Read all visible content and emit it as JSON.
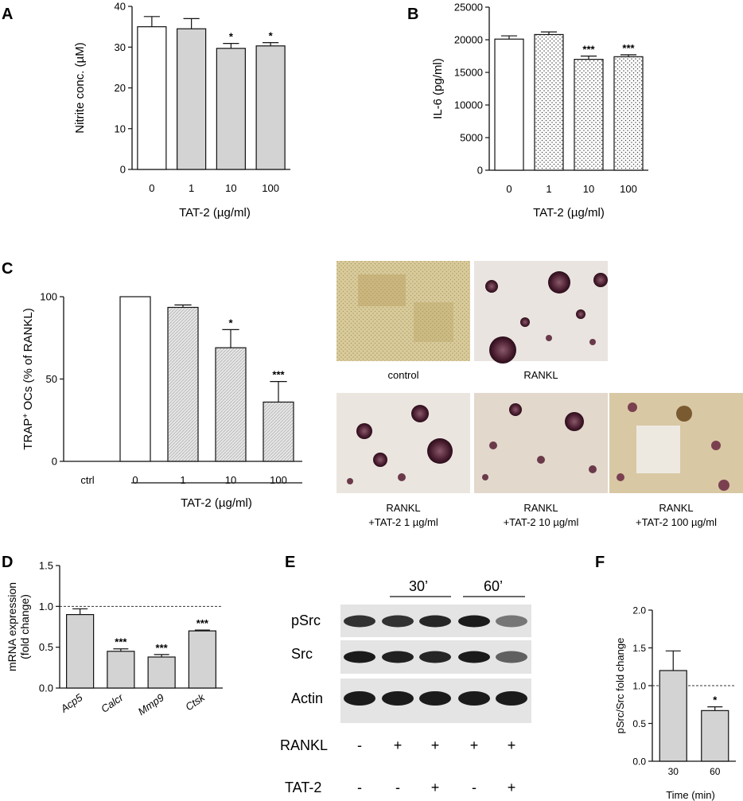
{
  "panels": {
    "A": "A",
    "B": "B",
    "C": "C",
    "D": "D",
    "E": "E",
    "F": "F"
  },
  "chart_data": [
    {
      "id": "A",
      "type": "bar",
      "categories": [
        "0",
        "1",
        "10",
        "100"
      ],
      "values": [
        35,
        34.5,
        29.7,
        30.3
      ],
      "errors": [
        2.5,
        2.5,
        1.2,
        0.8
      ],
      "sig": [
        "",
        "",
        "*",
        "*"
      ],
      "fills": [
        "white",
        "#d3d3d3",
        "#d3d3d3",
        "#d3d3d3"
      ],
      "xlabel": "TAT-2 (µg/ml)",
      "ylabel": "Nitrite conc. (µM)",
      "ylim": [
        0,
        40
      ],
      "yticks": [
        "0",
        "10",
        "20",
        "30",
        "40"
      ]
    },
    {
      "id": "B",
      "type": "bar",
      "categories": [
        "0",
        "1",
        "10",
        "100"
      ],
      "values": [
        20100,
        20800,
        17000,
        17400
      ],
      "errors": [
        500,
        400,
        500,
        300
      ],
      "sig": [
        "",
        "",
        "***",
        "***"
      ],
      "fills": [
        "white",
        "dots",
        "dots",
        "dots"
      ],
      "xlabel": "TAT-2 (µg/ml)",
      "ylabel": "IL-6 (pg/ml)",
      "ylim": [
        0,
        25000
      ],
      "yticks": [
        "0",
        "5000",
        "10000",
        "15000",
        "20000",
        "25000"
      ]
    },
    {
      "id": "C",
      "type": "bar",
      "categories": [
        "ctrl",
        "0",
        "1",
        "10",
        "100"
      ],
      "values": [
        0,
        100,
        93.5,
        69,
        36
      ],
      "errors": [
        0,
        0,
        1.5,
        11,
        12.5
      ],
      "sig": [
        "",
        "",
        "",
        "*",
        "***"
      ],
      "fills": [
        "white",
        "white",
        "hatch",
        "hatch",
        "hatch"
      ],
      "xlabel": "TAT-2 (µg/ml)",
      "ylabel_main": "TRAP",
      "ylabel_sup": "+",
      "ylabel_rest": " OCs (% of RANKL)",
      "ylim": [
        0,
        100
      ],
      "yticks": [
        "0",
        "50",
        "100"
      ]
    },
    {
      "id": "D",
      "type": "bar",
      "categories": [
        "Acp5",
        "Calcr",
        "Mmp9",
        "Ctsk"
      ],
      "values": [
        0.9,
        0.45,
        0.38,
        0.7
      ],
      "errors": [
        0.07,
        0.03,
        0.03,
        0.01
      ],
      "sig": [
        "",
        "***",
        "***",
        "***"
      ],
      "reference_line": 1.0,
      "ylabel_line1": "mRNA expression",
      "ylabel_line2": "(fold change)",
      "ylim": [
        0,
        1.5
      ],
      "yticks": [
        "0.0",
        "0.5",
        "1.0",
        "1.5"
      ]
    },
    {
      "id": "F",
      "type": "bar",
      "categories": [
        "30",
        "60"
      ],
      "values": [
        1.2,
        0.67
      ],
      "errors": [
        0.26,
        0.05
      ],
      "sig": [
        "",
        "*"
      ],
      "reference_line": 1.0,
      "xlabel": "Time (min)",
      "ylabel": "pSrc/Src fold change",
      "ylim": [
        0,
        2.0
      ],
      "yticks": [
        "0.0",
        "0.5",
        "1.0",
        "1.5",
        "2.0"
      ]
    }
  ],
  "micrographs": {
    "captions": {
      "control": "control",
      "rankl": "RANKL",
      "t1_line1": "RANKL",
      "t1_line2": "+TAT-2 1 µg/ml",
      "t10_line1": "RANKL",
      "t10_line2": "+TAT-2 10 µg/ml",
      "t100_line1": "RANKL",
      "t100_line2": "+TAT-2 100 µg/ml"
    }
  },
  "blot": {
    "time_labels": [
      "30’",
      "60’"
    ],
    "rows": [
      "pSrc",
      "Src",
      "Actin"
    ],
    "rankl_label": "RANKL",
    "rankl_signs": [
      "-",
      "+",
      "+",
      "+",
      "+"
    ],
    "tat_label": "TAT-2",
    "tat_signs": [
      "-",
      "-",
      "+",
      "-",
      "+"
    ],
    "band_intensity": {
      "pSrc": [
        0.85,
        0.85,
        0.9,
        0.95,
        0.55
      ],
      "Src": [
        0.95,
        0.92,
        0.9,
        0.95,
        0.65
      ],
      "Actin": [
        0.95,
        0.95,
        0.95,
        0.95,
        0.95
      ]
    }
  }
}
